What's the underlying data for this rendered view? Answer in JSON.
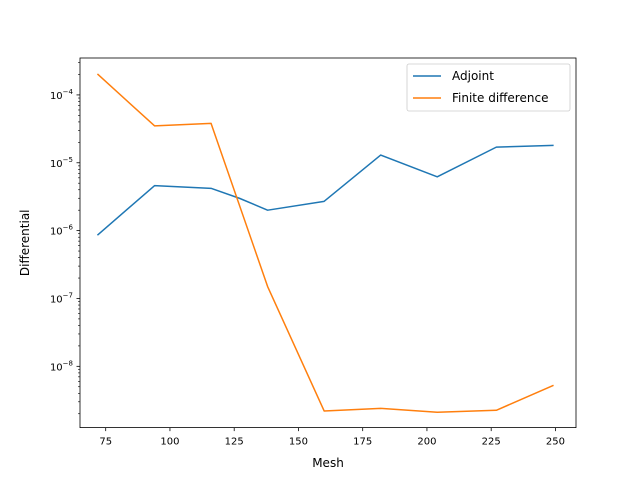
{
  "chart_data": {
    "type": "line",
    "title": "",
    "xlabel": "Mesh",
    "ylabel": "Differential",
    "xlim": [
      65,
      258
    ],
    "ylim": [
      1.25e-09,
      0.00035
    ],
    "yscale": "log",
    "grid": false,
    "legend_position": "top-right",
    "x_ticks": [
      75,
      100,
      125,
      150,
      175,
      200,
      225,
      250
    ],
    "x_tick_labels": [
      "75",
      "100",
      "125",
      "150",
      "175",
      "200",
      "225",
      "250"
    ],
    "y_ticks": [
      1e-08,
      1e-07,
      1e-06,
      1e-05,
      0.0001
    ],
    "y_tick_labels": [
      {
        "base": "10",
        "exp": "−8"
      },
      {
        "base": "10",
        "exp": "−7"
      },
      {
        "base": "10",
        "exp": "−6"
      },
      {
        "base": "10",
        "exp": "−5"
      },
      {
        "base": "10",
        "exp": "−4"
      }
    ],
    "series": [
      {
        "name": "Adjoint",
        "color": "#1f77b4",
        "x": [
          72,
          94,
          116,
          127,
          138,
          160,
          182,
          204,
          227,
          249
        ],
        "y": [
          8.7e-07,
          4.6e-06,
          4.2e-06,
          3e-06,
          2e-06,
          2.7e-06,
          1.3e-05,
          6.2e-06,
          1.7e-05,
          1.8e-05
        ]
      },
      {
        "name": "Finite difference",
        "color": "#ff7f0e",
        "x": [
          72,
          94,
          116,
          138,
          160,
          182,
          204,
          227,
          249
        ],
        "y": [
          0.0002,
          3.5e-05,
          3.8e-05,
          1.5e-07,
          2.2e-09,
          2.4e-09,
          2.1e-09,
          2.25e-09,
          5.2e-09
        ]
      }
    ]
  }
}
